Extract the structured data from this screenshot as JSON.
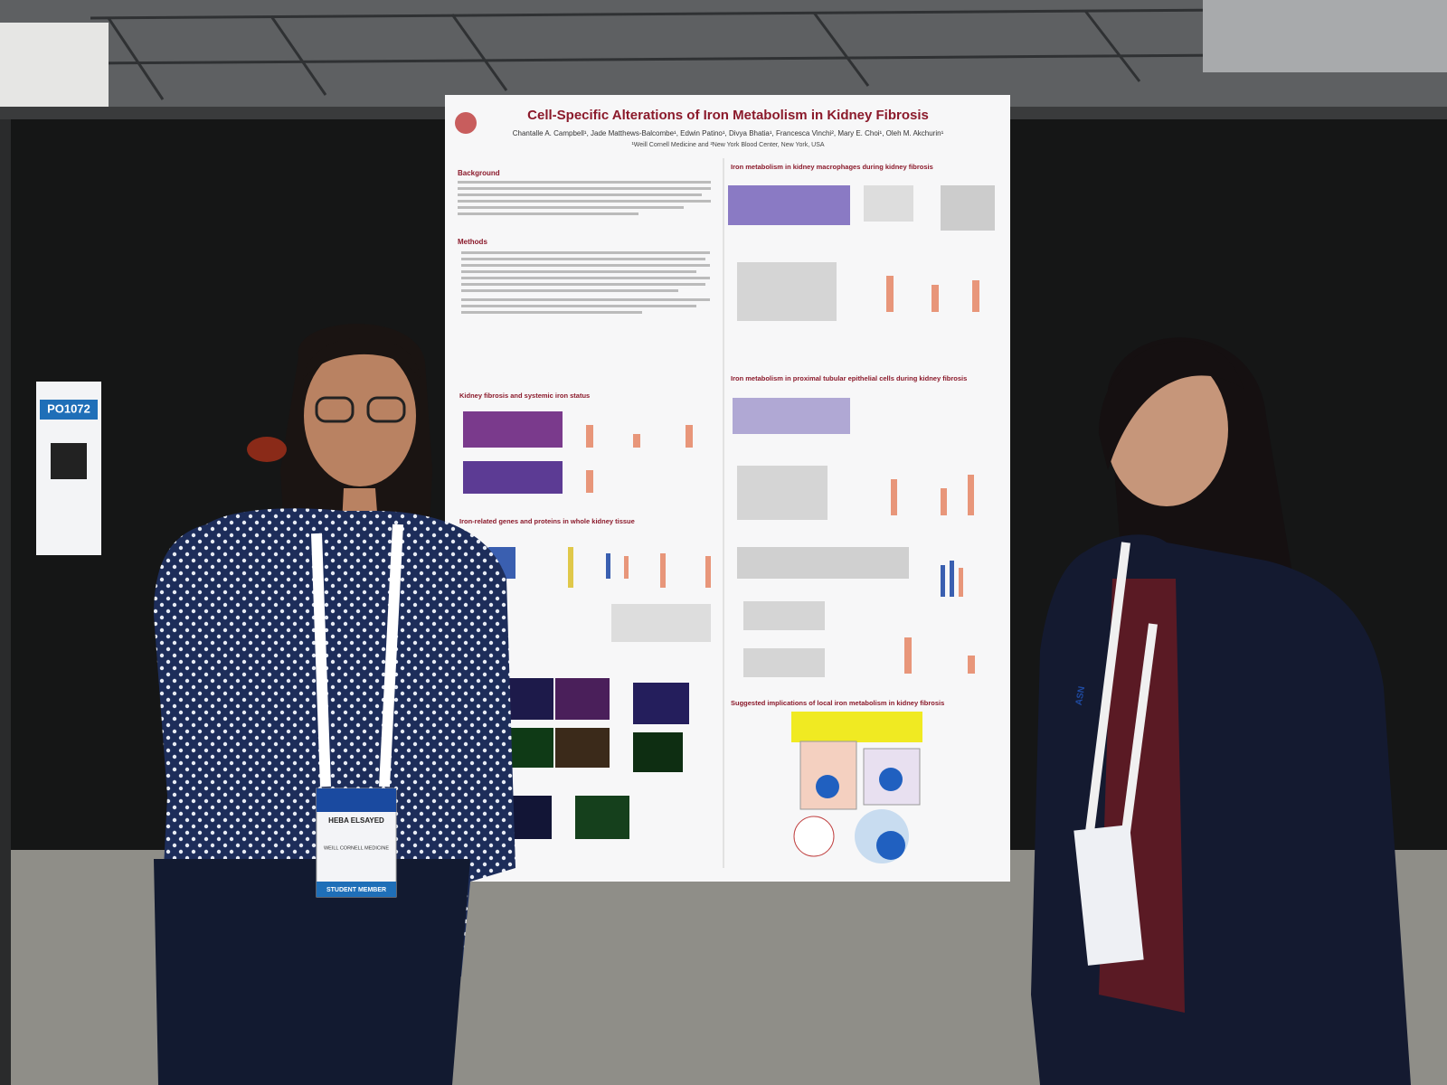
{
  "poster": {
    "title": "Cell-Specific Alterations of Iron Metabolism in Kidney Fibrosis",
    "authors": "Chantalle A. Campbell¹, Jade Matthews-Balcombe¹, Edwin Patino¹, Divya Bhatia¹, Francesca Vinchi², Mary E. Choi¹, Oleh M. Akchurin¹",
    "affiliation": "¹Weill Cornell Medicine and ²New York Blood Center, New York, USA",
    "sections": [
      "Background",
      "Methods",
      "Kidney fibrosis and systemic iron status",
      "Iron-related genes and proteins in whole kidney tissue",
      "Iron metabolism in kidney macrophages during kidney fibrosis",
      "Iron metabolism in proximal tubular epithelial cells during kidney fibrosis",
      "Suggested implications of local iron metabolism in kidney fibrosis"
    ]
  },
  "board_tag": "PO1072",
  "badge": {
    "name": "HEBA ELSAYED",
    "institution": "WEILL CORNELL MEDICINE",
    "member": "STUDENT MEMBER"
  },
  "lanyard": "ASN"
}
